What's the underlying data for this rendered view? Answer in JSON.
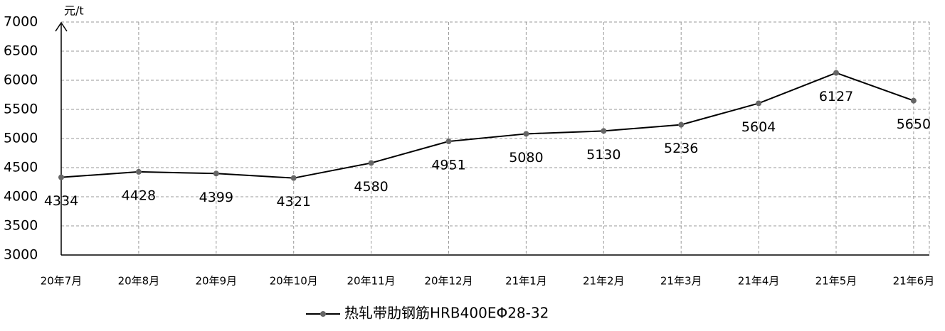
{
  "chart_data": {
    "type": "line",
    "y_label": "元/t",
    "categories": [
      "20年7月",
      "20年8月",
      "20年9月",
      "20年10月",
      "20年11月",
      "20年12月",
      "21年1月",
      "21年2月",
      "21年3月",
      "21年4月",
      "21年5月",
      "21年6月"
    ],
    "series": [
      {
        "name": "热轧带肋钢筋HRB400EΦ28-32",
        "color": "#000000",
        "values": [
          4334,
          4428,
          4399,
          4321,
          4580,
          4951,
          5080,
          5130,
          5236,
          5604,
          6127,
          5650
        ]
      }
    ],
    "ylim": [
      3000,
      7000
    ],
    "yticks": [
      3000,
      3500,
      4000,
      4500,
      5000,
      5500,
      6000,
      6500,
      7000
    ],
    "grid": true,
    "legend": "bottom",
    "marker_color": "#666666"
  }
}
